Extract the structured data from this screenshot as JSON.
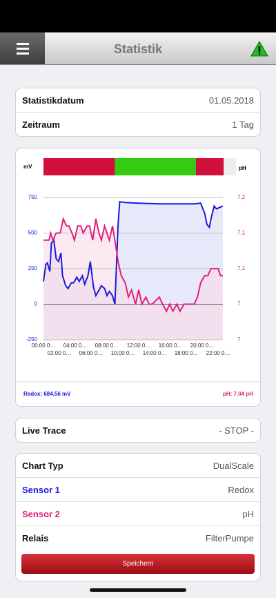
{
  "header": {
    "title": "Statistik"
  },
  "info_card": {
    "rows": [
      [
        "Statistikdatum",
        "01.05.2018"
      ],
      [
        "Zeitraum",
        "1 Tag"
      ]
    ]
  },
  "chart_data": {
    "type": "line",
    "y_label": "mV",
    "y2_label": "pH",
    "xlim": [
      0,
      22.6
    ],
    "xticks": [
      {
        "value": 0,
        "label": "00:00 0…"
      },
      {
        "value": 2,
        "label": "02:00 0…"
      },
      {
        "value": 4,
        "label": "04:00 0…"
      },
      {
        "value": 6,
        "label": "06:00 0…"
      },
      {
        "value": 8,
        "label": "08:00 0…"
      },
      {
        "value": 10,
        "label": "10:00 0…"
      },
      {
        "value": 12,
        "label": "12:00 0…"
      },
      {
        "value": 14,
        "label": "14:00 0…"
      },
      {
        "value": 16,
        "label": "16:00 0…"
      },
      {
        "value": 18,
        "label": "18:00 0…"
      },
      {
        "value": 20,
        "label": "20:00 0…"
      },
      {
        "value": 22,
        "label": "22:00 0…"
      }
    ],
    "ylim": [
      -250,
      750
    ],
    "yticks": [
      -250,
      0,
      250,
      500,
      750
    ],
    "y2lim": [
      6.98,
      7.18
    ],
    "y2ticks": [
      {
        "value": 6.98,
        "label": "7"
      },
      {
        "value": 7.03,
        "label": "7"
      },
      {
        "value": 7.08,
        "label": "7,1"
      },
      {
        "value": 7.13,
        "label": "7,1"
      },
      {
        "value": 7.18,
        "label": "7,2"
      }
    ],
    "grid": true,
    "status_band": [
      {
        "color": "#d0103a",
        "from": 0,
        "to": 9.0
      },
      {
        "color": "#33cc11",
        "from": 9.0,
        "to": 19.2
      },
      {
        "color": "#d0103a",
        "from": 19.2,
        "to": 22.7
      }
    ],
    "series": [
      {
        "color": "#1a1adc",
        "fill": "#d8d8f8",
        "x": [
          0,
          0.3,
          0.5,
          0.8,
          1.0,
          1.3,
          1.6,
          1.9,
          2.2,
          2.4,
          2.8,
          3.1,
          3.5,
          3.8,
          4.2,
          4.5,
          4.9,
          5.2,
          5.6,
          5.9,
          6.3,
          6.6,
          7.0,
          7.3,
          7.7,
          8.0,
          8.3,
          8.7,
          9.0,
          9.4,
          9.6,
          10.3,
          12.0,
          14.6,
          17.2,
          19.0,
          19.8,
          20.3,
          20.6,
          20.9,
          21.1,
          21.5,
          21.8,
          22.2,
          22.6
        ],
        "values": [
          160,
          280,
          290,
          230,
          430,
          450,
          320,
          300,
          360,
          200,
          130,
          110,
          150,
          150,
          190,
          160,
          200,
          140,
          200,
          300,
          120,
          60,
          100,
          130,
          110,
          60,
          90,
          60,
          0,
          560,
          720,
          715,
          710,
          705,
          705,
          705,
          710,
          640,
          560,
          540,
          600,
          690,
          670,
          680,
          690
        ]
      },
      {
        "color": "#e0207a",
        "fill": "#f8dbe8",
        "axis": "y2",
        "x": [
          0,
          0.7,
          0.9,
          1.2,
          1.6,
          2.1,
          2.5,
          2.9,
          3.2,
          3.6,
          3.9,
          4.3,
          4.7,
          5.0,
          5.5,
          5.8,
          6.2,
          6.6,
          7.0,
          7.3,
          7.7,
          8.0,
          8.3,
          8.7,
          9.0,
          9.4,
          9.8,
          10.3,
          10.7,
          11.1,
          11.6,
          12.0,
          12.4,
          12.9,
          13.3,
          13.7,
          14.6,
          15.0,
          15.5,
          15.9,
          16.3,
          16.8,
          17.2,
          17.7,
          18.1,
          19.0,
          19.4,
          19.8,
          20.3,
          20.7,
          21.1,
          21.6,
          22.0,
          22.3,
          22.6
        ],
        "values": [
          7.12,
          7.12,
          7.13,
          7.12,
          7.13,
          7.13,
          7.15,
          7.14,
          7.14,
          7.13,
          7.12,
          7.14,
          7.14,
          7.13,
          7.14,
          7.14,
          7.12,
          7.15,
          7.13,
          7.12,
          7.14,
          7.13,
          7.12,
          7.14,
          7.12,
          7.09,
          7.07,
          7.06,
          7.04,
          7.05,
          7.03,
          7.05,
          7.03,
          7.04,
          7.03,
          7.03,
          7.04,
          7.03,
          7.02,
          7.03,
          7.02,
          7.03,
          7.02,
          7.03,
          7.03,
          7.03,
          7.04,
          7.06,
          7.07,
          7.07,
          7.08,
          7.08,
          7.08,
          7.07,
          7.07
        ]
      }
    ],
    "readouts": [
      "Redox: 684.56 mV",
      "pH: 7.04 pH"
    ]
  },
  "live_trace": {
    "label": "Live Trace",
    "value": "- STOP -"
  },
  "settings": {
    "rows": [
      [
        "Chart Typ",
        "DualScale"
      ],
      [
        "Sensor 1",
        "Redox"
      ],
      [
        "Sensor 2",
        "pH"
      ],
      [
        "Relais",
        "FilterPumpe"
      ]
    ],
    "button": "Speichern"
  }
}
